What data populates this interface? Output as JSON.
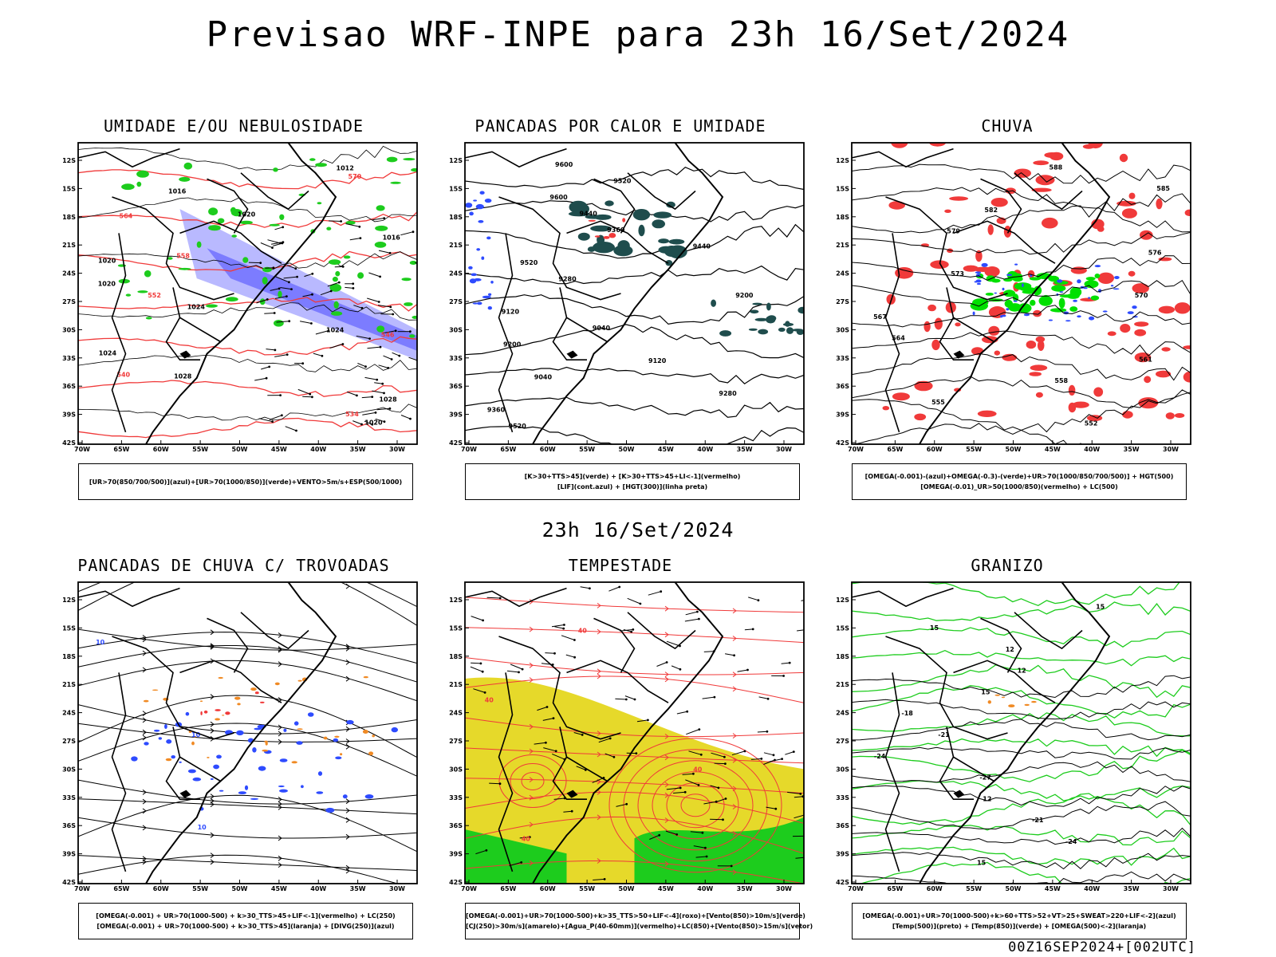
{
  "header": {
    "title": "Previsao WRF-INPE  para 23h 16/Set/2024"
  },
  "mid_title": "23h 16/Set/2024",
  "footer": "00Z16SEP2024+[002UTC]",
  "axes": {
    "lat_ticks": [
      "12S",
      "15S",
      "18S",
      "21S",
      "24S",
      "27S",
      "30S",
      "33S",
      "36S",
      "39S",
      "42S"
    ],
    "lon_ticks": [
      "70W",
      "65W",
      "60W",
      "55W",
      "50W",
      "45W",
      "40W",
      "35W",
      "30W"
    ]
  },
  "panels": [
    {
      "id": "umidade",
      "title": "UMIDADE E/OU NEBULOSIDADE",
      "legend": [
        "[UR>70(850/700/500)](azul)+[UR>70(1000/850)](verde)+VENTO>5m/s+ESP(500/1000)"
      ],
      "contour_labels": [
        "1012",
        "1016",
        "1020",
        "1016",
        "1020",
        "1020",
        "1024",
        "1024",
        "1024",
        "1028",
        "1028",
        "1020",
        "570",
        "564",
        "558",
        "552",
        "546",
        "540",
        "534"
      ]
    },
    {
      "id": "pancadas-calor",
      "title": "PANCADAS POR CALOR E UMIDADE",
      "legend": [
        "[K>30+TTS>45](verde) + [K>30+TTS>45+LI<-1](vermelho)",
        "[LIF](cont.azul) + [HGT(300)](linha preta)"
      ],
      "contour_labels": [
        "9600",
        "9520",
        "9600",
        "9440",
        "9360",
        "9440",
        "9520",
        "9280",
        "9200",
        "9120",
        "9040",
        "9200",
        "9120",
        "9040",
        "9280",
        "9360",
        "9520"
      ]
    },
    {
      "id": "chuva",
      "title": "CHUVA",
      "legend": [
        "[OMEGA(-0.001)-(azul)+OMEGA(-0.3)-(verde)+UR>70(1000/850/700/500)] + HGT(500)",
        "[OMEGA(-0.01)_UR>50(1000/850)(vermelho) + LC(500)"
      ],
      "contour_labels": [
        "588",
        "585",
        "582",
        "579",
        "576",
        "573",
        "570",
        "567",
        "564",
        "561",
        "558",
        "555",
        "552"
      ]
    },
    {
      "id": "trovoadas",
      "title": "PANCADAS DE CHUVA C/ TROVOADAS",
      "legend": [
        "[OMEGA(-0.001) + UR>70(1000-500) + k>30_TTS>45+LIF<-1](vermelho) + LC(250)",
        "[OMEGA(-0.001) + UR>70(1000-500) + k>30_TTS>45](laranja) + [DIVG(250)](azul)"
      ],
      "contour_labels": [
        "10",
        "10",
        "10"
      ]
    },
    {
      "id": "tempestade",
      "title": "TEMPESTADE",
      "legend": [
        "[OMEGA(-0.001)+UR>70(1000-500)+k>35_TTS>50+LIF<-4](roxo)+[Vento(850)>10m/s](verde)",
        "[CJ(250)>30m/s](amarelo)+[Agua_P(40-60mm)](vermelho)+LC(850)+[Vento(850)>15m/s](vetor)"
      ],
      "contour_labels": [
        "40",
        "40",
        "40",
        "40"
      ]
    },
    {
      "id": "granizo",
      "title": "GRANIZO",
      "legend": [
        "[OMEGA(-0.001)+UR>70(1000-500)+k>60+TTS>52+VT>25+SWEAT>220+LIF<-2](azul)",
        "[Temp(500)](preto) + [Temp(850)](verde) + [OMEGA(500)<-2](laranja)"
      ],
      "contour_labels": [
        "15",
        "15",
        "12",
        "12",
        "15",
        "-18",
        "-21",
        "-24",
        "-27",
        "12",
        "-21",
        "-24",
        "15"
      ]
    }
  ],
  "colors": {
    "blue": "#2e4bff",
    "green": "#1dcc1d",
    "bright_green": "#00e000",
    "red": "#f03a3a",
    "orange": "#f08a24",
    "yellow": "#e6d92a",
    "purple_fill": "#7c7cff",
    "lavender": "#b9b9ff",
    "dark_teal": "#1f4d4d",
    "coast": "#000000"
  }
}
